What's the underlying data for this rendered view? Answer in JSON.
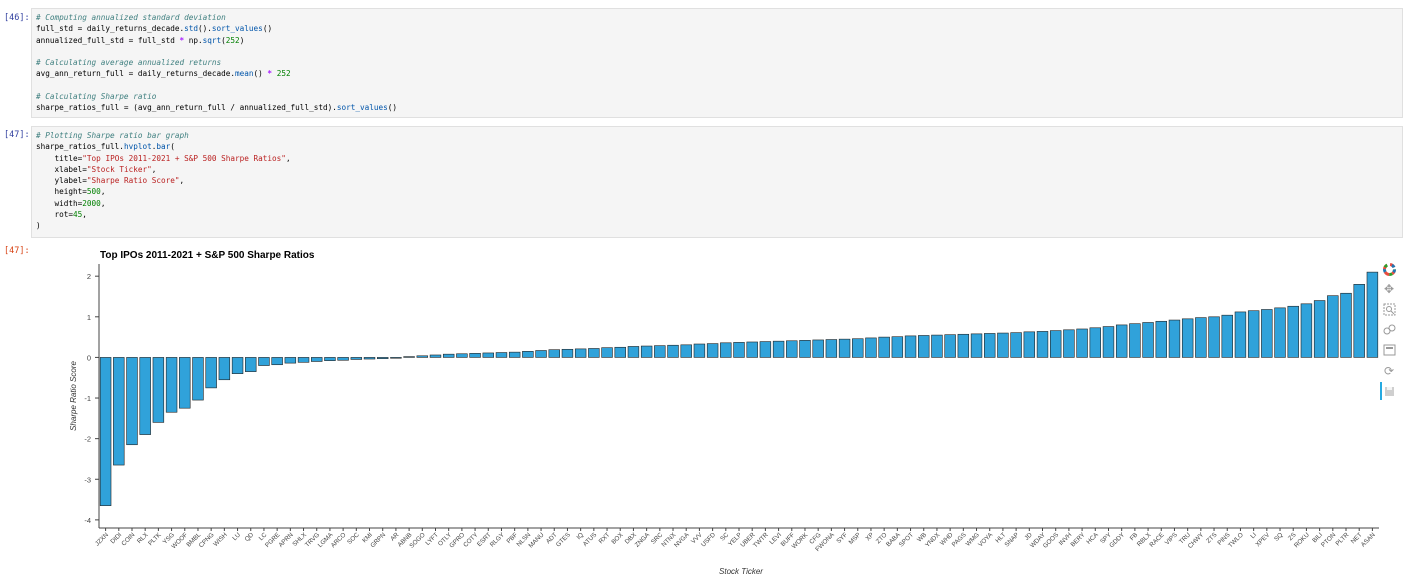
{
  "cells": [
    {
      "prompt": "[46]:",
      "lines": [
        [
          {
            "t": "# Computing annualized standard deviation",
            "c": "cm"
          }
        ],
        [
          {
            "t": "full_std = daily_returns_decade.",
            "c": ""
          },
          {
            "t": "std",
            "c": "fn"
          },
          {
            "t": "().",
            "c": ""
          },
          {
            "t": "sort_values",
            "c": "fn"
          },
          {
            "t": "()",
            "c": ""
          }
        ],
        [
          {
            "t": "annualized_full_std = full_std ",
            "c": ""
          },
          {
            "t": "*",
            "c": "op"
          },
          {
            "t": " np.",
            "c": ""
          },
          {
            "t": "sqrt",
            "c": "fn"
          },
          {
            "t": "(",
            "c": ""
          },
          {
            "t": "252",
            "c": "nu"
          },
          {
            "t": ")",
            "c": ""
          }
        ],
        [],
        [
          {
            "t": "# Calculating average annualized returns",
            "c": "cm"
          }
        ],
        [
          {
            "t": "avg_ann_return_full = daily_returns_decade.",
            "c": ""
          },
          {
            "t": "mean",
            "c": "fn"
          },
          {
            "t": "() ",
            "c": ""
          },
          {
            "t": "*",
            "c": "op"
          },
          {
            "t": " ",
            "c": ""
          },
          {
            "t": "252",
            "c": "nu"
          }
        ],
        [],
        [
          {
            "t": "# Calculating Sharpe ratio",
            "c": "cm"
          }
        ],
        [
          {
            "t": "sharpe_ratios_full = (avg_ann_return_full / annualized_full_std).",
            "c": ""
          },
          {
            "t": "sort_values",
            "c": "fn"
          },
          {
            "t": "()",
            "c": ""
          }
        ]
      ]
    },
    {
      "prompt": "[47]:",
      "lines": [
        [
          {
            "t": "# Plotting Sharpe ratio bar graph",
            "c": "cm"
          }
        ],
        [
          {
            "t": "sharpe_ratios_full.",
            "c": ""
          },
          {
            "t": "hvplot",
            "c": "fn"
          },
          {
            "t": ".",
            "c": ""
          },
          {
            "t": "bar",
            "c": "fn"
          },
          {
            "t": "(",
            "c": ""
          }
        ],
        [
          {
            "t": "    title=",
            "c": ""
          },
          {
            "t": "\"Top IPOs 2011-2021 + S&P 500 Sharpe Ratios\"",
            "c": "st"
          },
          {
            "t": ",",
            "c": ""
          }
        ],
        [
          {
            "t": "    xlabel=",
            "c": ""
          },
          {
            "t": "\"Stock Ticker\"",
            "c": "st"
          },
          {
            "t": ",",
            "c": ""
          }
        ],
        [
          {
            "t": "    ylabel=",
            "c": ""
          },
          {
            "t": "\"Sharpe Ratio Score\"",
            "c": "st"
          },
          {
            "t": ",",
            "c": ""
          }
        ],
        [
          {
            "t": "    height=",
            "c": ""
          },
          {
            "t": "500",
            "c": "nu"
          },
          {
            "t": ",",
            "c": ""
          }
        ],
        [
          {
            "t": "    width=",
            "c": ""
          },
          {
            "t": "2000",
            "c": "nu"
          },
          {
            "t": ",",
            "c": ""
          }
        ],
        [
          {
            "t": "    rot=",
            "c": ""
          },
          {
            "t": "45",
            "c": "nu"
          },
          {
            "t": ",",
            "c": ""
          }
        ],
        [
          {
            "t": ")",
            "c": ""
          }
        ]
      ]
    }
  ],
  "output_prompt": "[47]:",
  "toolbar": [
    "bokeh-logo-icon",
    "pan-icon",
    "box-zoom-icon",
    "wheel-zoom-icon",
    "box-select-icon",
    "reset-icon",
    "save-icon"
  ],
  "colors": {
    "bar": "#30a2da",
    "bar_edge": "#222222"
  },
  "chart_data": {
    "type": "bar",
    "title": "Top IPOs 2011-2021 + S&P 500 Sharpe Ratios",
    "xlabel": "Stock Ticker",
    "ylabel": "Sharpe Ratio Score",
    "ylim": [
      -4.2,
      2.3
    ],
    "yticks": [
      -4,
      -3,
      -2,
      -1,
      0,
      1,
      2
    ],
    "categories": [
      "JZXN",
      "DIDI",
      "COIN",
      "RLX",
      "PLTK",
      "YSG",
      "WOOF",
      "BMBL",
      "CPNG",
      "WISH",
      "LU",
      "QD",
      "LC",
      "PGRE",
      "APRN",
      "SHLX",
      "TRVG",
      "LGMA",
      "ARCO",
      "SOC",
      "KMI",
      "GRPN",
      "AR",
      "ABNB",
      "SOGO",
      "LYFT",
      "OTLY",
      "GPRO",
      "COTY",
      "ESRT",
      "RLGY",
      "PBF",
      "NLSN",
      "MANU",
      "ADT",
      "GTES",
      "IQ",
      "ATUS",
      "RXT",
      "BOX",
      "DBX",
      "ZNGA",
      "SRC",
      "NTNX",
      "NVGA",
      "VVV",
      "USFD",
      "SC",
      "YELP",
      "UBER",
      "TWTR",
      "LEVI",
      "BUFF",
      "WORK",
      "CFG",
      "FWONA",
      "SYF",
      "MSP",
      "XP",
      "ZTO",
      "BABA",
      "SPOT",
      "WB",
      "YNDX",
      "WHD",
      "PAGS",
      "WMG",
      "VOYA",
      "HLT",
      "SNAP",
      "JD",
      "WDAY",
      "GOOS",
      "INVH",
      "BERY",
      "HCA",
      "SPY",
      "GDDY",
      "FB",
      "RBLX",
      "RACE",
      "VIPS",
      "TRU",
      "CHWY",
      "ZTS",
      "PINS",
      "TWLO",
      "LI",
      "XPEV",
      "SQ",
      "ZS",
      "ROKU",
      "BILI",
      "PTON",
      "PLTR",
      "NET",
      "ASAN"
    ],
    "values": [
      -3.65,
      -2.65,
      -2.15,
      -1.9,
      -1.6,
      -1.35,
      -1.25,
      -1.05,
      -0.75,
      -0.55,
      -0.4,
      -0.35,
      -0.2,
      -0.18,
      -0.14,
      -0.12,
      -0.1,
      -0.08,
      -0.07,
      -0.05,
      -0.04,
      -0.03,
      -0.02,
      0.02,
      0.04,
      0.06,
      0.08,
      0.09,
      0.1,
      0.11,
      0.12,
      0.13,
      0.15,
      0.17,
      0.19,
      0.2,
      0.21,
      0.22,
      0.24,
      0.25,
      0.27,
      0.28,
      0.29,
      0.3,
      0.31,
      0.33,
      0.34,
      0.36,
      0.37,
      0.38,
      0.39,
      0.4,
      0.41,
      0.42,
      0.43,
      0.44,
      0.45,
      0.46,
      0.48,
      0.5,
      0.51,
      0.53,
      0.54,
      0.55,
      0.56,
      0.57,
      0.58,
      0.59,
      0.6,
      0.61,
      0.63,
      0.64,
      0.66,
      0.68,
      0.7,
      0.73,
      0.76,
      0.8,
      0.83,
      0.86,
      0.89,
      0.92,
      0.95,
      0.98,
      1.0,
      1.04,
      1.12,
      1.15,
      1.18,
      1.22,
      1.26,
      1.32,
      1.4,
      1.52,
      1.58,
      1.8,
      2.1
    ],
    "grid": false
  }
}
